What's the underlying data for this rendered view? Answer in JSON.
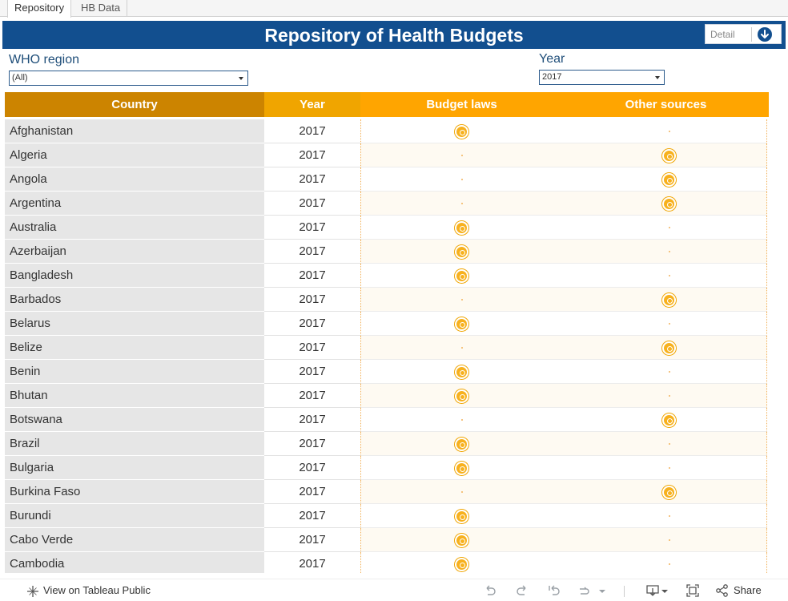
{
  "tabs": [
    {
      "label": "Repository",
      "active": true
    },
    {
      "label": "HB Data",
      "active": false
    }
  ],
  "title": "Repository of Health Budgets",
  "detail_button": {
    "label": "Detail"
  },
  "filters": {
    "region": {
      "label": "WHO region",
      "value": "(All)"
    },
    "year": {
      "label": "Year",
      "value": "2017"
    }
  },
  "table": {
    "headers": {
      "country": "Country",
      "year": "Year",
      "budget": "Budget laws",
      "other": "Other sources"
    },
    "rows": [
      {
        "country": "Afghanistan",
        "year": "2017",
        "source": "budget"
      },
      {
        "country": "Algeria",
        "year": "2017",
        "source": "other"
      },
      {
        "country": "Angola",
        "year": "2017",
        "source": "other"
      },
      {
        "country": "Argentina",
        "year": "2017",
        "source": "other"
      },
      {
        "country": "Australia",
        "year": "2017",
        "source": "budget"
      },
      {
        "country": "Azerbaijan",
        "year": "2017",
        "source": "budget"
      },
      {
        "country": "Bangladesh",
        "year": "2017",
        "source": "budget"
      },
      {
        "country": "Barbados",
        "year": "2017",
        "source": "other"
      },
      {
        "country": "Belarus",
        "year": "2017",
        "source": "budget"
      },
      {
        "country": "Belize",
        "year": "2017",
        "source": "other"
      },
      {
        "country": "Benin",
        "year": "2017",
        "source": "budget"
      },
      {
        "country": "Bhutan",
        "year": "2017",
        "source": "budget"
      },
      {
        "country": "Botswana",
        "year": "2017",
        "source": "other"
      },
      {
        "country": "Brazil",
        "year": "2017",
        "source": "budget"
      },
      {
        "country": "Bulgaria",
        "year": "2017",
        "source": "budget"
      },
      {
        "country": "Burkina Faso",
        "year": "2017",
        "source": "other"
      },
      {
        "country": "Burundi",
        "year": "2017",
        "source": "budget"
      },
      {
        "country": "Cabo Verde",
        "year": "2017",
        "source": "budget"
      },
      {
        "country": "Cambodia",
        "year": "2017",
        "source": "budget"
      }
    ]
  },
  "footer": {
    "view_on": "View on Tableau Public",
    "share": "Share",
    "icons": [
      "undo-icon",
      "redo-icon",
      "revert-icon",
      "refresh-icon",
      "download-icon",
      "fullscreen-icon",
      "share-icon"
    ]
  },
  "colors": {
    "title_bg": "#124f8f",
    "country_header": "#cc8400",
    "year_header": "#f0a500",
    "source_header": "#ffa500",
    "mark": "#f7b11e"
  }
}
